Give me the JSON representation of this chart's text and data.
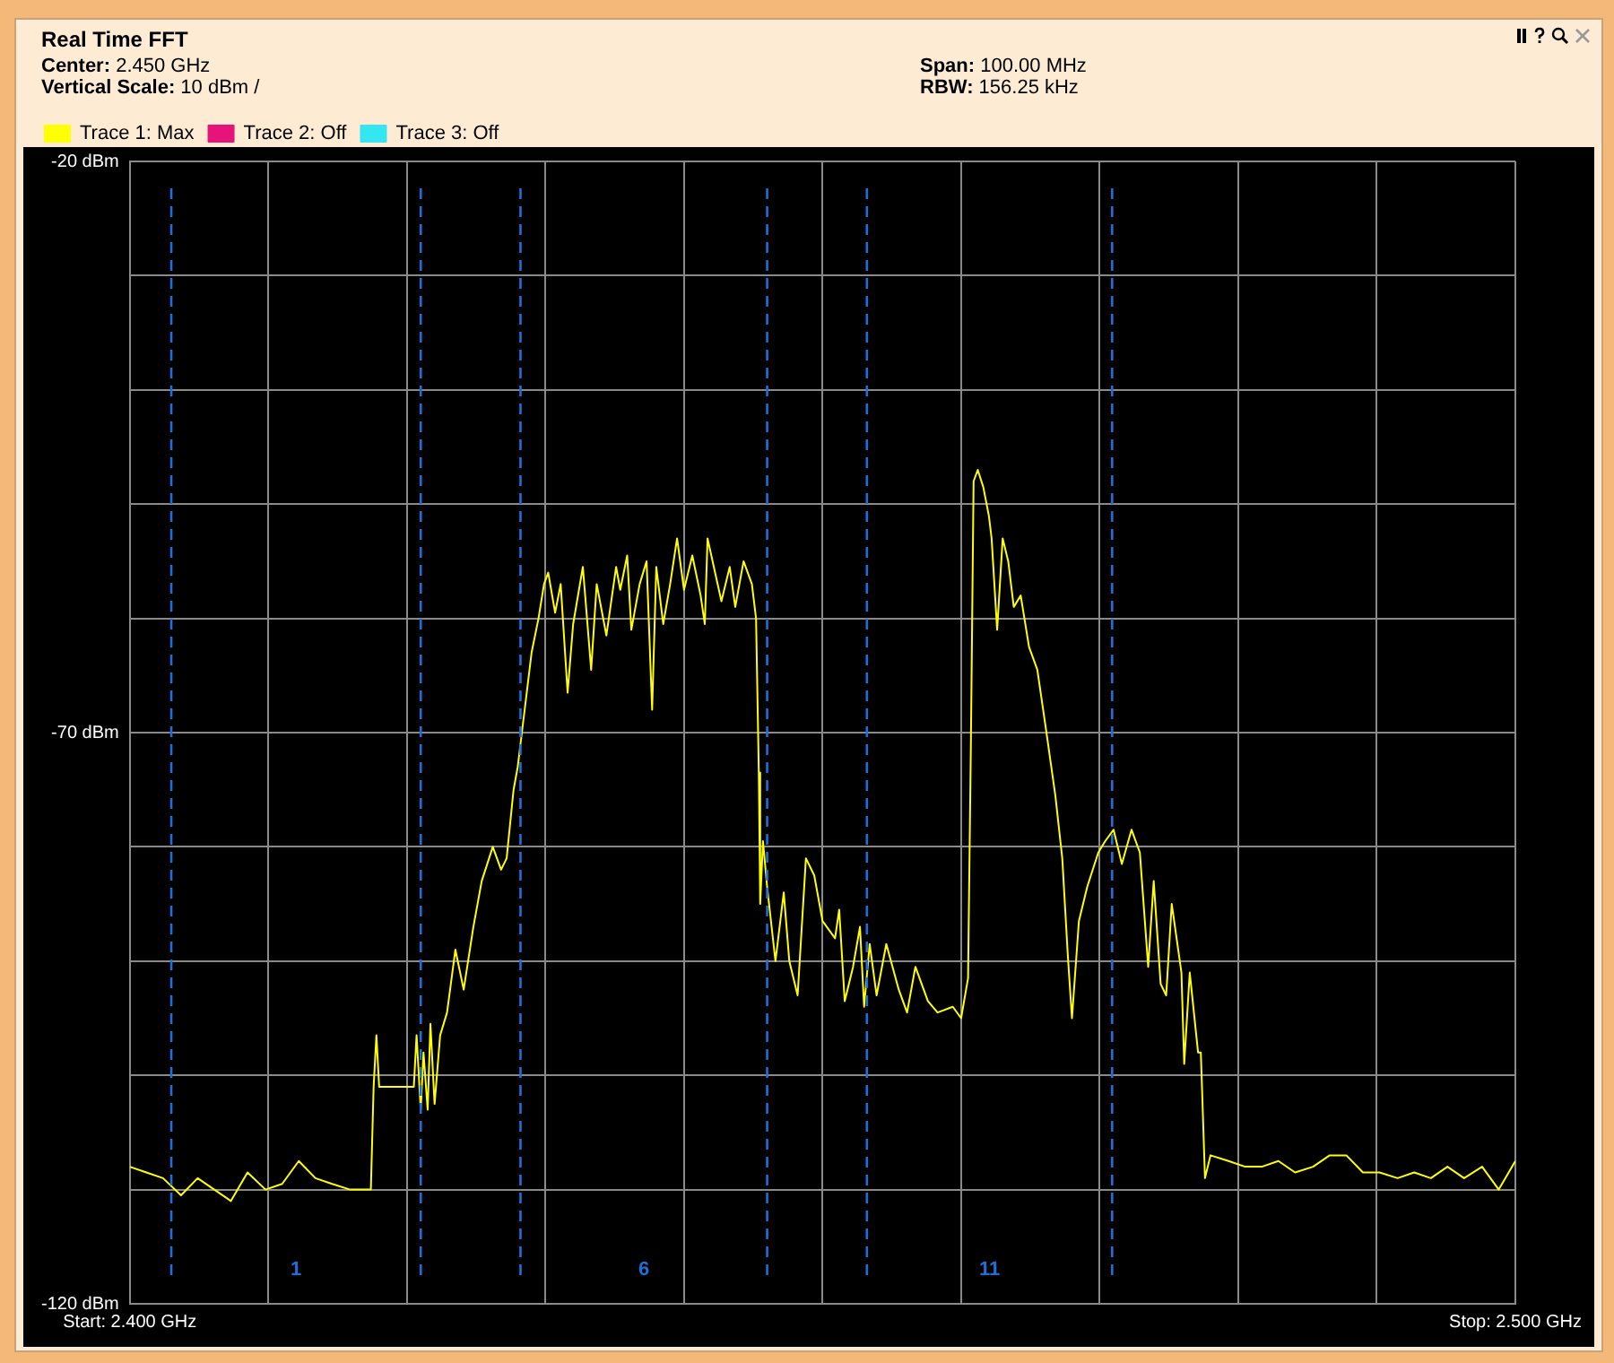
{
  "chart_data": {
    "type": "line",
    "title": "Real Time FFT",
    "annotations": [
      "Center: 2.450 GHz",
      "Span: 100.00 MHz",
      "Vertical Scale: 10 dBm /",
      "RBW: 156.25 kHz",
      "1",
      "6",
      "11"
    ],
    "xlim": [
      2.4,
      2.5
    ],
    "xticks": [
      {
        "value": 2.4,
        "label": "Start: 2.400 GHz"
      },
      {
        "value": 2.41,
        "label": null
      },
      {
        "value": 2.42,
        "label": null
      },
      {
        "value": 2.43,
        "label": null
      },
      {
        "value": 2.44,
        "label": null
      },
      {
        "value": 2.45,
        "label": null
      },
      {
        "value": 2.46,
        "label": null
      },
      {
        "value": 2.47,
        "label": null
      },
      {
        "value": 2.48,
        "label": null
      },
      {
        "value": 2.49,
        "label": null
      },
      {
        "value": 2.5,
        "label": "Stop: 2.500 GHz"
      }
    ],
    "ylim": [
      -120,
      -20
    ],
    "yticks": [
      {
        "value": -20,
        "label": "-20 dBm"
      },
      {
        "value": -30,
        "label": null
      },
      {
        "value": -40,
        "label": null
      },
      {
        "value": -50,
        "label": null
      },
      {
        "value": -60,
        "label": null
      },
      {
        "value": -70,
        "label": "-70 dBm"
      },
      {
        "value": -80,
        "label": null
      },
      {
        "value": -90,
        "label": null
      },
      {
        "value": -100,
        "label": null
      },
      {
        "value": -110,
        "label": null
      },
      {
        "value": -120,
        "label": "-120 dBm"
      }
    ],
    "grid": true,
    "legend": "top left",
    "marker": "none",
    "line_style": "solid",
    "ref_lines": [
      {
        "axis": "x",
        "value": 2.403,
        "color": "#1e6fd9",
        "line_style": "dashed"
      },
      {
        "axis": "x",
        "value": 2.421,
        "color": "#1e6fd9",
        "line_style": "dashed"
      },
      {
        "axis": "x",
        "value": 2.4282,
        "color": "#1e6fd9",
        "line_style": "dashed"
      },
      {
        "axis": "x",
        "value": 2.446,
        "color": "#1e6fd9",
        "line_style": "dashed"
      },
      {
        "axis": "x",
        "value": 2.4532,
        "color": "#1e6fd9",
        "line_style": "dashed"
      },
      {
        "axis": "x",
        "value": 2.4709,
        "color": "#1e6fd9",
        "line_style": "dashed"
      }
    ],
    "series": [
      {
        "name": "Trace 1: Max",
        "color": "#ffff00",
        "x": [
          2.4,
          2.4012,
          2.4024,
          2.4037,
          2.4049,
          2.4061,
          2.4073,
          2.4085,
          2.4098,
          2.411,
          2.4122,
          2.4134,
          2.4146,
          2.4159,
          2.4171,
          2.4174,
          2.4176,
          2.4178,
          2.418,
          2.4184,
          2.4201,
          2.4205,
          2.4207,
          2.421,
          2.4212,
          2.4215,
          2.4217,
          2.422,
          2.4224,
          2.4229,
          2.4235,
          2.4241,
          2.4248,
          2.4254,
          2.4262,
          2.4268,
          2.4272,
          2.4277,
          2.428,
          2.4283,
          2.4287,
          2.429,
          2.4295,
          2.4299,
          2.4302,
          2.4307,
          2.4311,
          2.4316,
          2.432,
          2.4327,
          2.4333,
          2.4337,
          2.4344,
          2.4351,
          2.4354,
          2.4359,
          2.4362,
          2.4368,
          2.4373,
          2.4377,
          2.438,
          2.4385,
          2.439,
          2.4395,
          2.44,
          2.4406,
          2.4412,
          2.4415,
          2.4417,
          2.4427,
          2.4433,
          2.4437,
          2.4443,
          2.4449,
          2.4452,
          2.4454,
          2.4455,
          2.4457,
          2.446,
          2.4466,
          2.4472,
          2.4476,
          2.4482,
          2.4488,
          2.4494,
          2.45,
          2.4509,
          2.4512,
          2.4516,
          2.4522,
          2.4527,
          2.453,
          2.4534,
          2.4539,
          2.4546,
          2.4555,
          2.4561,
          2.4567,
          2.4576,
          2.4583,
          2.4594,
          2.46,
          2.4605,
          2.4607,
          2.4609,
          2.4612,
          2.4616,
          2.462,
          2.4622,
          2.4626,
          2.463,
          2.4634,
          2.4638,
          2.4643,
          2.4649,
          2.4655,
          2.4661,
          2.4668,
          2.4673,
          2.4677,
          2.468,
          2.4685,
          2.4691,
          2.4699,
          2.4704,
          2.471,
          2.4716,
          2.4723,
          2.4729,
          2.4735,
          2.4739,
          2.4744,
          2.4748,
          2.4752,
          2.4759,
          2.4761,
          2.4765,
          2.4771,
          2.4773,
          2.4776,
          2.478,
          2.4793,
          2.4805,
          2.4817,
          2.4829,
          2.4841,
          2.4854,
          2.4866,
          2.4878,
          2.489,
          2.4902,
          2.4915,
          2.4927,
          2.4939,
          2.4951,
          2.4963,
          2.4976,
          2.4988,
          2.5
        ],
        "values": [
          -108,
          -108.5,
          -109,
          -110.5,
          -109,
          -110,
          -111,
          -108.5,
          -110,
          -109.5,
          -107.5,
          -109,
          -109.5,
          -110,
          -110,
          -110,
          -101,
          -96.5,
          -101,
          -101,
          -101,
          -101,
          -96.5,
          -103,
          -98,
          -103,
          -95.5,
          -102.5,
          -96.5,
          -94.5,
          -89,
          -92.5,
          -87,
          -83,
          -80,
          -82,
          -81,
          -75,
          -73,
          -70,
          -66,
          -63,
          -60,
          -57,
          -56,
          -59.5,
          -57,
          -66.5,
          -60.5,
          -55.5,
          -64.5,
          -57,
          -61.5,
          -55.5,
          -57.5,
          -54.5,
          -61,
          -57,
          -55,
          -68,
          -55.5,
          -60.5,
          -57,
          -53,
          -57.5,
          -54.5,
          -58,
          -60.5,
          -53,
          -58.5,
          -55.5,
          -59,
          -55,
          -57,
          -60,
          -73.5,
          -85,
          -79.5,
          -83.5,
          -90,
          -84,
          -90,
          -93,
          -81,
          -82.5,
          -86.5,
          -88,
          -85.5,
          -93.5,
          -90.5,
          -87,
          -94,
          -88.5,
          -93,
          -88.5,
          -92.5,
          -94.5,
          -90.5,
          -93.5,
          -94.5,
          -94,
          -95,
          -91.5,
          -71.5,
          -48,
          -47,
          -48.5,
          -51,
          -53,
          -61,
          -53,
          -55,
          -59,
          -58,
          -62.5,
          -64.5,
          -69.5,
          -75.5,
          -81,
          -89.5,
          -95,
          -86.5,
          -83.5,
          -80.5,
          -79.5,
          -78.5,
          -81.5,
          -78.5,
          -80.5,
          -90.5,
          -83,
          -92,
          -93,
          -85,
          -91,
          -99,
          -91,
          -98,
          -98,
          -109,
          -107,
          -107.5,
          -108,
          -108,
          -107.5,
          -108.5,
          -108,
          -107,
          -107,
          -108.5,
          -108.5,
          -109,
          -108.5,
          -109,
          -108,
          -109,
          -108,
          -110,
          -107.5
        ]
      },
      {
        "name": "Trace 2: Off",
        "color": "#e8137a"
      },
      {
        "name": "Trace 3: Off",
        "color": "#33e6f0"
      }
    ]
  }
}
